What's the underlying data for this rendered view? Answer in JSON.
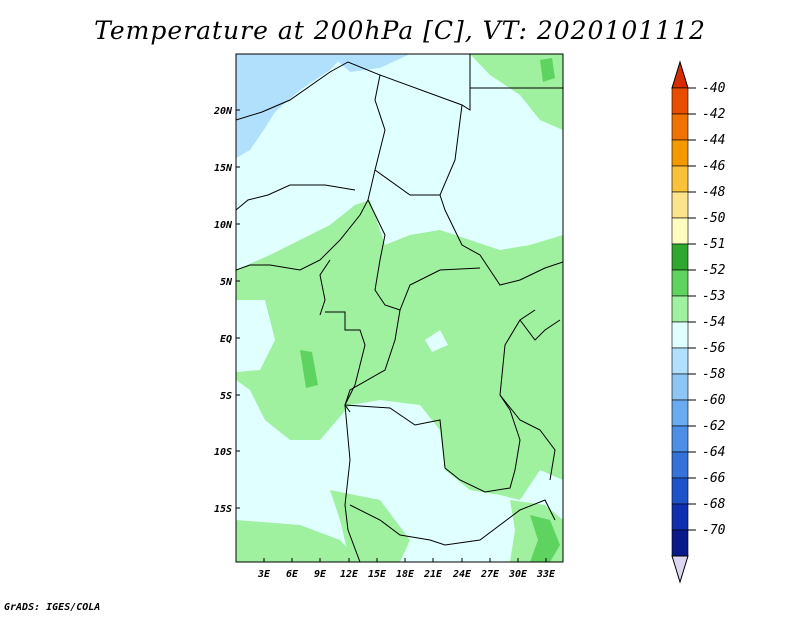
{
  "title": "Temperature at 200hPa [C], VT: 2020101112",
  "lat_labels": [
    "20N",
    "15N",
    "10N",
    "5N",
    "EQ",
    "5S",
    "10S",
    "15S"
  ],
  "lon_labels": [
    "3E",
    "6E",
    "9E",
    "12E",
    "15E",
    "18E",
    "21E",
    "24E",
    "27E",
    "30E",
    "33E"
  ],
  "colorbar": {
    "labels": [
      "-40",
      "-42",
      "-44",
      "-46",
      "-48",
      "-50",
      "-51",
      "-52",
      "-53",
      "-54",
      "-56",
      "-58",
      "-60",
      "-62",
      "-64",
      "-66",
      "-68",
      "-70"
    ],
    "colors": [
      "#d62c00",
      "#e84e00",
      "#f07200",
      "#f49a00",
      "#f8c23a",
      "#fbe58c",
      "#fffcc0",
      "#2fa82f",
      "#5fd35f",
      "#9ff09f",
      "#e0ffff",
      "#b0e0fb",
      "#8dc6f5",
      "#6aaaee",
      "#4d8ee6",
      "#3573da",
      "#1e52c8",
      "#0e2fb0",
      "#081a8a",
      "#dcd6f0"
    ]
  },
  "footer": "GrADS: IGES/COLA"
}
